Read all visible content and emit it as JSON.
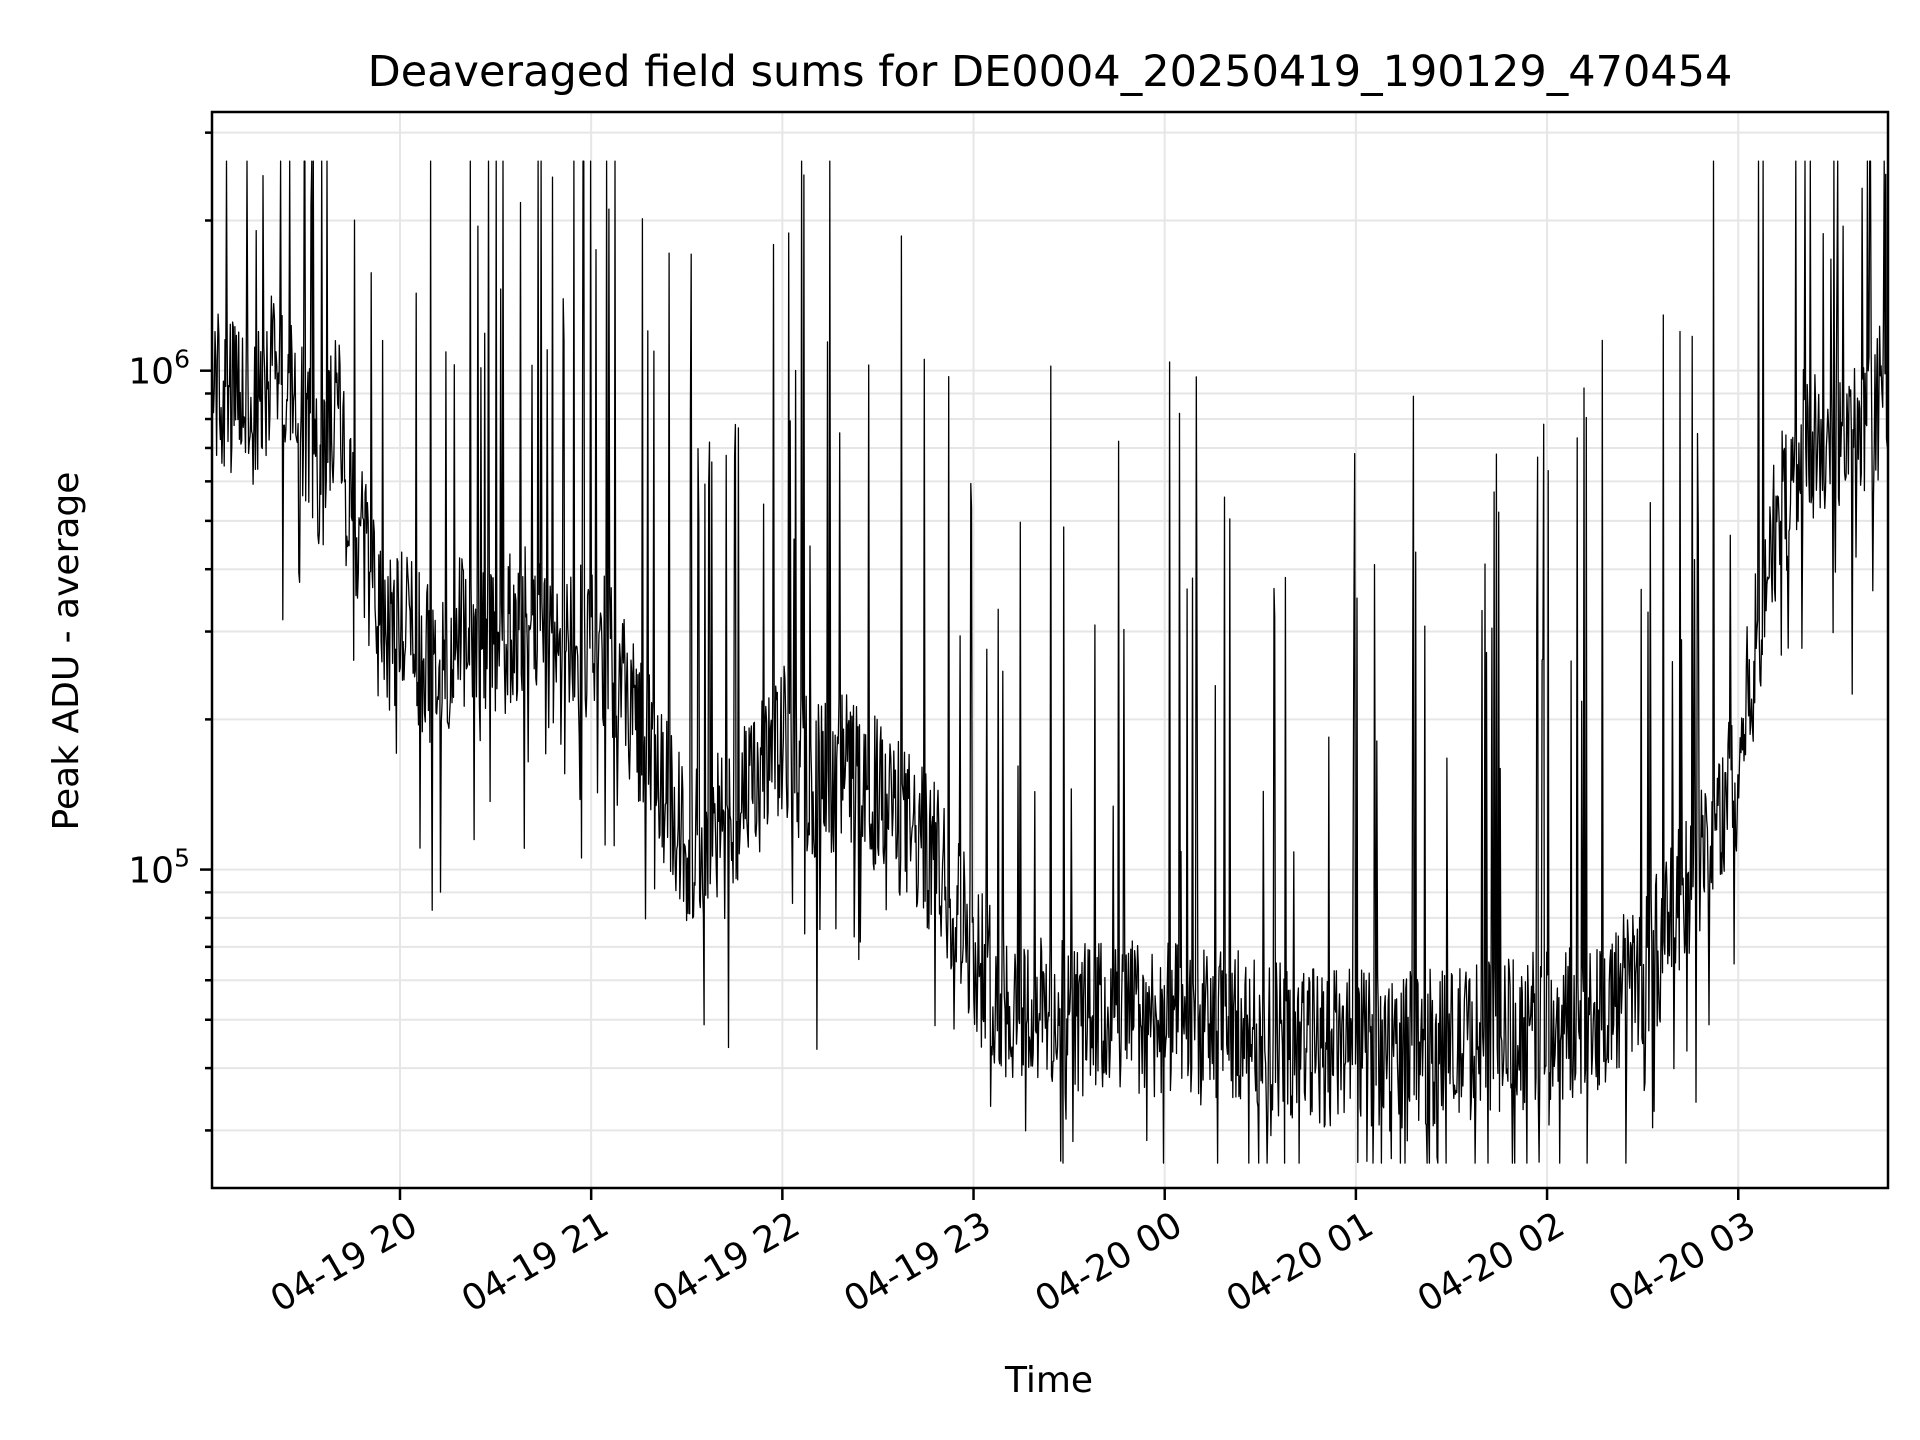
{
  "chart_data": {
    "type": "line",
    "title": "Deaveraged field sums for DE0004_20250419_190129_470454",
    "xlabel": "Time",
    "ylabel": "Peak ADU - average",
    "yscale": "log",
    "xlim": [
      "2025-04-19 19:01",
      "2025-04-20 03:47"
    ],
    "ylim": [
      23000,
      3300000
    ],
    "grid": true,
    "x_ticks": [
      {
        "value": "2025-04-19 20:00",
        "label": "04-19 20"
      },
      {
        "value": "2025-04-19 21:00",
        "label": "04-19 21"
      },
      {
        "value": "2025-04-19 22:00",
        "label": "04-19 22"
      },
      {
        "value": "2025-04-19 23:00",
        "label": "04-19 23"
      },
      {
        "value": "2025-04-20 00:00",
        "label": "04-20 00"
      },
      {
        "value": "2025-04-20 01:00",
        "label": "04-20 01"
      },
      {
        "value": "2025-04-20 02:00",
        "label": "04-20 02"
      },
      {
        "value": "2025-04-20 03:00",
        "label": "04-20 03"
      }
    ],
    "y_ticks": [
      {
        "value": 100000,
        "base": "10",
        "exp": "5"
      },
      {
        "value": 1000000,
        "base": "10",
        "exp": "6"
      }
    ],
    "series": [
      {
        "color": "#000000",
        "x": [
          "2025-04-19 19:01",
          "2025-04-19 19:05",
          "2025-04-19 19:10",
          "2025-04-19 19:15",
          "2025-04-19 19:20",
          "2025-04-19 19:25",
          "2025-04-19 19:30",
          "2025-04-19 19:35",
          "2025-04-19 19:40",
          "2025-04-19 19:45",
          "2025-04-19 19:50",
          "2025-04-19 19:55",
          "2025-04-19 20:00",
          "2025-04-19 20:10",
          "2025-04-19 20:20",
          "2025-04-19 20:30",
          "2025-04-19 20:40",
          "2025-04-19 20:50",
          "2025-04-19 21:00",
          "2025-04-19 21:10",
          "2025-04-19 21:20",
          "2025-04-19 21:30",
          "2025-04-19 21:40",
          "2025-04-19 21:50",
          "2025-04-19 22:00",
          "2025-04-19 22:10",
          "2025-04-19 22:20",
          "2025-04-19 22:30",
          "2025-04-19 22:40",
          "2025-04-19 22:50",
          "2025-04-19 23:00",
          "2025-04-19 23:10",
          "2025-04-19 23:20",
          "2025-04-19 23:30",
          "2025-04-19 23:40",
          "2025-04-19 23:50",
          "2025-04-20 00:00",
          "2025-04-20 00:10",
          "2025-04-20 00:20",
          "2025-04-20 00:30",
          "2025-04-20 00:40",
          "2025-04-20 00:50",
          "2025-04-20 01:00",
          "2025-04-20 01:10",
          "2025-04-20 01:20",
          "2025-04-20 01:30",
          "2025-04-20 01:40",
          "2025-04-20 01:50",
          "2025-04-20 02:00",
          "2025-04-20 02:10",
          "2025-04-20 02:20",
          "2025-04-20 02:30",
          "2025-04-20 02:40",
          "2025-04-20 02:50",
          "2025-04-20 03:00",
          "2025-04-20 03:10",
          "2025-04-20 03:20",
          "2025-04-20 03:30",
          "2025-04-20 03:40",
          "2025-04-20 03:47"
        ],
        "y": [
          1000000,
          850000,
          900000,
          800000,
          1100000,
          900000,
          800000,
          600000,
          900000,
          500000,
          400000,
          280000,
          320000,
          250000,
          300000,
          280000,
          320000,
          250000,
          300000,
          240000,
          160000,
          110000,
          120000,
          140000,
          180000,
          150000,
          160000,
          140000,
          120000,
          100000,
          70000,
          54000,
          52000,
          50000,
          50000,
          51000,
          50000,
          48000,
          49000,
          47000,
          45000,
          44000,
          44000,
          43000,
          44000,
          44000,
          46000,
          47000,
          48000,
          50000,
          54000,
          62000,
          80000,
          110000,
          160000,
          450000,
          700000,
          700000,
          720000,
          1000000
        ]
      }
    ]
  }
}
